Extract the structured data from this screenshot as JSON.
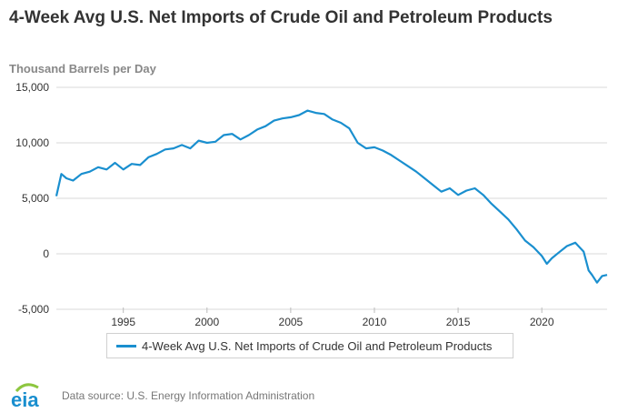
{
  "chart_data": {
    "type": "line",
    "title": "4-Week Avg U.S. Net Imports of Crude Oil and Petroleum Products",
    "ylabel": "Thousand Barrels per Day",
    "xlabel": "",
    "xlim": [
      1991.0,
      2023.9
    ],
    "ylim": [
      -5000,
      15000
    ],
    "yticks": [
      15000,
      10000,
      5000,
      0,
      -5000
    ],
    "ytick_labels": [
      "15,000",
      "10,000",
      "5,000",
      "0",
      "-5,000"
    ],
    "xticks": [
      1995,
      2000,
      2005,
      2010,
      2015,
      2020
    ],
    "xtick_labels": [
      "1995",
      "2000",
      "2005",
      "2010",
      "2015",
      "2020"
    ],
    "grid": true,
    "legend_position": "bottom",
    "series": [
      {
        "name": "4-Week Avg U.S. Net Imports of Crude Oil and Petroleum Products",
        "color": "#1a8fcf",
        "x": [
          1991.0,
          1991.3,
          1991.6,
          1992.0,
          1992.5,
          1993.0,
          1993.5,
          1994.0,
          1994.5,
          1995.0,
          1995.5,
          1996.0,
          1996.5,
          1997.0,
          1997.5,
          1998.0,
          1998.5,
          1999.0,
          1999.5,
          2000.0,
          2000.5,
          2001.0,
          2001.5,
          2002.0,
          2002.5,
          2003.0,
          2003.5,
          2004.0,
          2004.5,
          2005.0,
          2005.5,
          2006.0,
          2006.5,
          2007.0,
          2007.5,
          2008.0,
          2008.5,
          2009.0,
          2009.5,
          2010.0,
          2010.5,
          2011.0,
          2011.5,
          2012.0,
          2012.5,
          2013.0,
          2013.5,
          2014.0,
          2014.5,
          2015.0,
          2015.5,
          2016.0,
          2016.5,
          2017.0,
          2017.5,
          2018.0,
          2018.5,
          2019.0,
          2019.5,
          2020.0,
          2020.3,
          2020.6,
          2021.0,
          2021.5,
          2022.0,
          2022.5,
          2022.8,
          2023.0,
          2023.3,
          2023.6,
          2023.9
        ],
        "values": [
          5200,
          7200,
          6800,
          6600,
          7200,
          7400,
          7800,
          7600,
          8200,
          7600,
          8100,
          8000,
          8700,
          9000,
          9400,
          9500,
          9800,
          9500,
          10200,
          10000,
          10100,
          10700,
          10800,
          10300,
          10700,
          11200,
          11500,
          12000,
          12200,
          12300,
          12500,
          12900,
          12700,
          12600,
          12100,
          11800,
          11300,
          10000,
          9500,
          9600,
          9300,
          8900,
          8400,
          7900,
          7400,
          6800,
          6200,
          5600,
          5900,
          5300,
          5700,
          5900,
          5300,
          4500,
          3800,
          3100,
          2200,
          1200,
          600,
          -200,
          -900,
          -400,
          100,
          700,
          1000,
          200,
          -1500,
          -1900,
          -2600,
          -2000,
          -1900
        ]
      }
    ]
  },
  "legend": {
    "label": "4-Week Avg U.S. Net Imports of Crude Oil and Petroleum Products"
  },
  "footer": {
    "logo_text": "eia",
    "source": "Data source: U.S. Energy Information Administration"
  },
  "colors": {
    "series": "#1a8fcf",
    "grid": "#d9d9d9",
    "logo_blue": "#1a8fcf",
    "logo_green": "#8dc63f"
  }
}
